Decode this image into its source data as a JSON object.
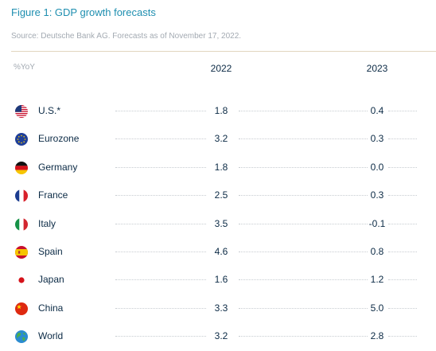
{
  "title": "Figure 1: GDP growth forecasts",
  "source": "Source: Deutsche Bank AG. Forecasts as of November 17, 2022.",
  "unit_label": "%YoY",
  "chart_data": {
    "type": "table",
    "title": "Figure 1: GDP growth forecasts",
    "columns": [
      "2022",
      "2023"
    ],
    "rows": [
      {
        "country": "U.S.*",
        "flag_icon": "us-flag-icon",
        "values": [
          "1.8",
          "0.4"
        ]
      },
      {
        "country": "Eurozone",
        "flag_icon": "eu-flag-icon",
        "values": [
          "3.2",
          "0.3"
        ]
      },
      {
        "country": "Germany",
        "flag_icon": "germany-flag-icon",
        "values": [
          "1.8",
          "0.0"
        ]
      },
      {
        "country": "France",
        "flag_icon": "france-flag-icon",
        "values": [
          "2.5",
          "0.3"
        ]
      },
      {
        "country": "Italy",
        "flag_icon": "italy-flag-icon",
        "values": [
          "3.5",
          "-0.1"
        ]
      },
      {
        "country": "Spain",
        "flag_icon": "spain-flag-icon",
        "values": [
          "4.6",
          "0.8"
        ]
      },
      {
        "country": "Japan",
        "flag_icon": "japan-flag-icon",
        "values": [
          "1.6",
          "1.2"
        ]
      },
      {
        "country": "China",
        "flag_icon": "china-flag-icon",
        "values": [
          "3.3",
          "5.0"
        ]
      },
      {
        "country": "World",
        "flag_icon": "globe-icon",
        "values": [
          "3.2",
          "2.8"
        ]
      }
    ]
  },
  "colors": {
    "title": "#1f8fb0",
    "muted": "#a3aab2",
    "text": "#0b2a45",
    "rule": "#e2d6bf"
  }
}
